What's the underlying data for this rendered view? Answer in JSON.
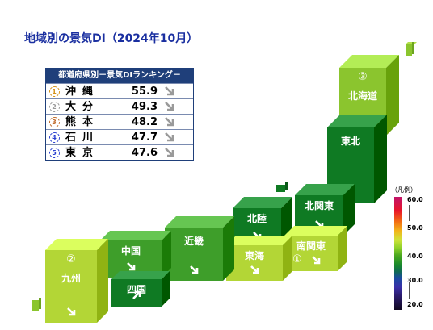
{
  "title": "地域別の景気DI（2024年10月）",
  "ranking": {
    "header": "都道府県別－景気DIランキング－",
    "rows": [
      {
        "rank": "1",
        "pref": "沖縄",
        "value": "55.9",
        "medal_color": "#d4921a"
      },
      {
        "rank": "2",
        "pref": "大分",
        "value": "49.3",
        "medal_color": "#9a9a9a"
      },
      {
        "rank": "3",
        "pref": "熊本",
        "value": "48.2",
        "medal_color": "#c06a2a"
      },
      {
        "rank": "4",
        "pref": "石川",
        "value": "47.7",
        "medal_color": "#2a3fd0"
      },
      {
        "rank": "5",
        "pref": "東京",
        "value": "47.6",
        "medal_color": "#2a3fd0"
      }
    ],
    "trend_icon": "diagonal-up-arrow-icon"
  },
  "regions": {
    "hokkaido": {
      "label": "北海道",
      "rank": "③"
    },
    "tohoku": {
      "label": "東北"
    },
    "kitakanto": {
      "label": "北関東"
    },
    "hokuriku": {
      "label": "北陸"
    },
    "minamikanto": {
      "label": "南関東",
      "rank": "①"
    },
    "tokai": {
      "label": "東海"
    },
    "kinki": {
      "label": "近畿"
    },
    "chugoku": {
      "label": "中国"
    },
    "shikoku": {
      "label": "四国"
    },
    "kyushu": {
      "label": "九州",
      "rank": "②"
    }
  },
  "legend": {
    "title": "（凡例）",
    "ticks": [
      "60.0",
      "50.0",
      "40.0",
      "30.0",
      "20.0"
    ]
  },
  "colors": {
    "dark_green": "#0f7a23",
    "mid_green": "#3e9e2a",
    "light_green": "#8bc52e",
    "yellow_green": "#b3d636"
  }
}
